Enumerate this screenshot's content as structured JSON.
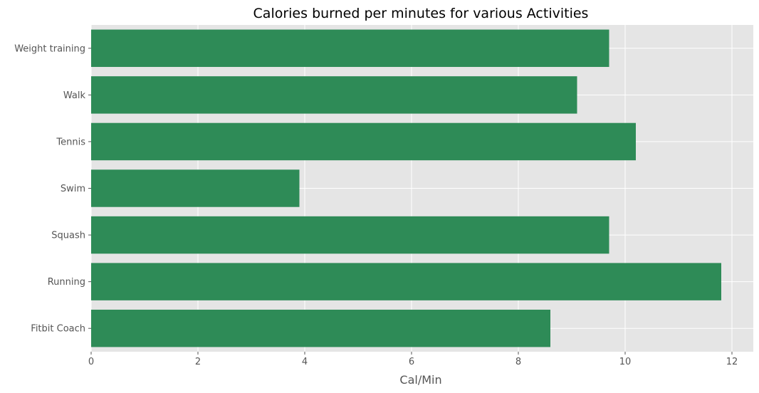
{
  "chart_data": {
    "type": "bar",
    "orientation": "horizontal",
    "title": "Calories burned per minutes for various Activities",
    "xlabel": "Cal/Min",
    "ylabel": "",
    "categories": [
      "Fitbit Coach",
      "Running",
      "Squash",
      "Swim",
      "Tennis",
      "Walk",
      "Weight training"
    ],
    "values": [
      8.6,
      11.8,
      9.7,
      3.9,
      10.2,
      9.1,
      9.7
    ],
    "xlim": [
      0,
      12.4
    ],
    "xticks": [
      "0",
      "2",
      "4",
      "6",
      "8",
      "10",
      "12"
    ],
    "grid": true,
    "style": "ggplot",
    "colors": {
      "bar": "#2e8b57",
      "plot_background": "#e5e5e5",
      "grid": "#ffffff",
      "tick_text": "#555555"
    }
  }
}
